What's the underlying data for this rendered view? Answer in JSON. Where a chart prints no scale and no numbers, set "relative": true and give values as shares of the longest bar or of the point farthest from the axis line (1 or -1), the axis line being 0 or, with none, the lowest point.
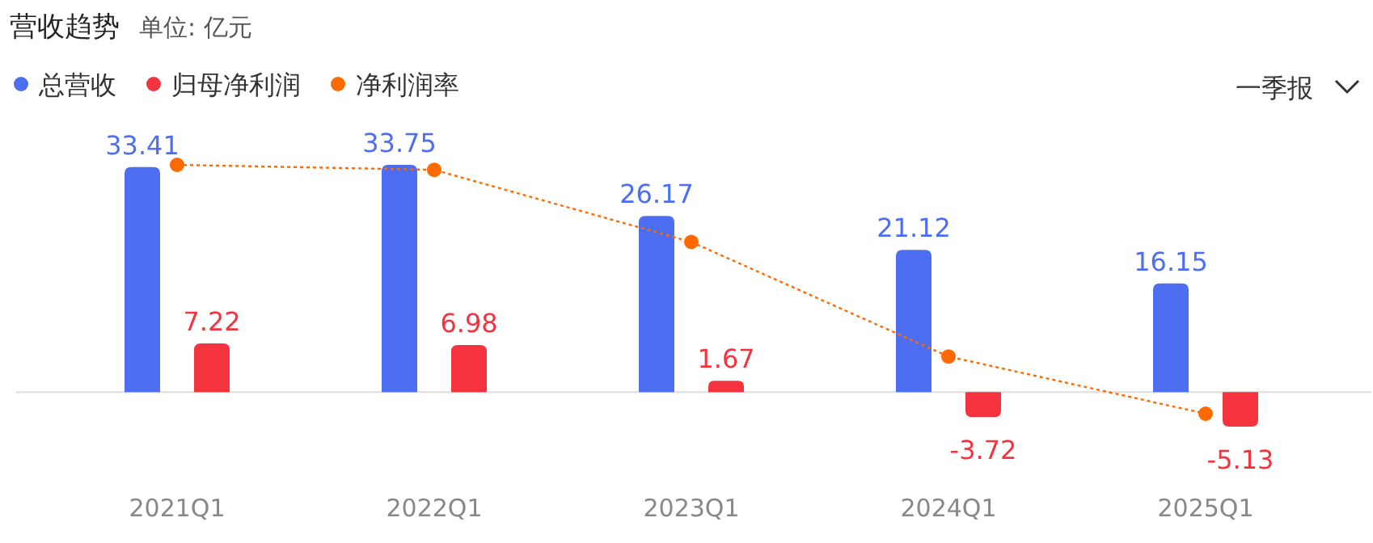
{
  "chart_data": [
    {
      "type": "bar",
      "title": "营收趋势",
      "subtitle": "单位: 亿元",
      "annotations": [
        "一季报"
      ],
      "categories": [
        "2021Q1",
        "2022Q1",
        "2023Q1",
        "2024Q1",
        "2025Q1"
      ],
      "series": [
        {
          "name": "总营收",
          "color": "#4e6ef2",
          "values": [
            33.41,
            33.75,
            26.17,
            21.12,
            16.15
          ]
        },
        {
          "name": "归母净利润",
          "color": "#f5333f",
          "values": [
            7.22,
            6.98,
            1.67,
            -3.72,
            -5.13
          ]
        }
      ],
      "data_labels": true,
      "legend": "top left"
    },
    {
      "type": "line",
      "categories": [
        null,
        null,
        null,
        null,
        null
      ],
      "relative": true,
      "legend": "top left",
      "series": [
        {
          "name": "净利润率",
          "color": "#ff6a00",
          "marker": "circle",
          "line_style": "dotted",
          "values": [
            1,
            0.98,
            0.69,
            0.23,
            0
          ]
        }
      ]
    }
  ]
}
